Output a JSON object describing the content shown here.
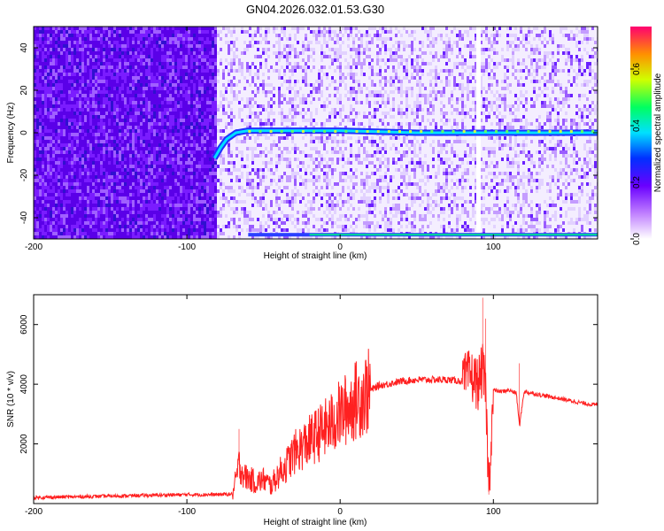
{
  "title": "GN04.2026.032.01.53.G30",
  "colors": {
    "snr_line": "#ff2020",
    "spectrum_low": "#ffffff",
    "spectrum_mid": "#6a00ff",
    "signal_track": "#00e0ff"
  },
  "chart_data": [
    {
      "type": "heatmap",
      "xlabel": "Height of straight line (km)",
      "ylabel": "Frequency (Hz)",
      "xlim": [
        -200,
        168
      ],
      "ylim": [
        -50,
        50
      ],
      "xticks": [
        -200,
        -100,
        0,
        100
      ],
      "yticks": [
        -40,
        -20,
        0,
        20,
        40
      ],
      "colorbar": {
        "label": "Normalized spectral amplitude",
        "range": [
          0.0,
          0.75
        ],
        "ticks": [
          "0.0",
          "0.2",
          "0.4",
          "0.6"
        ]
      },
      "signal_track": [
        {
          "x": -82,
          "y": -12
        },
        {
          "x": -78,
          "y": -7
        },
        {
          "x": -74,
          "y": -3
        },
        {
          "x": -68,
          "y": 0
        },
        {
          "x": -60,
          "y": 1
        },
        {
          "x": -40,
          "y": 1
        },
        {
          "x": 0,
          "y": 1
        },
        {
          "x": 50,
          "y": 0
        },
        {
          "x": 100,
          "y": 0
        },
        {
          "x": 168,
          "y": 0
        }
      ],
      "noise_boundary_x": -82,
      "data_gap_x": 90,
      "edge_band_y": -48
    },
    {
      "type": "line",
      "xlabel": "Height of straight line (km)",
      "ylabel": "SNR (10 * v/v)",
      "xlim": [
        -200,
        168
      ],
      "ylim": [
        0,
        7000
      ],
      "xticks": [
        -200,
        -100,
        0,
        100
      ],
      "yticks": [
        2000,
        4000,
        6000
      ],
      "series": [
        {
          "x": [
            -200,
            -150,
            -100,
            -80,
            -70,
            -66,
            -62,
            -58,
            -55,
            -50,
            -45,
            -40,
            -35,
            -30,
            -25,
            -20,
            -15,
            -10,
            -5,
            0,
            5,
            10,
            15,
            20,
            25,
            30,
            35,
            40,
            50,
            60,
            70,
            80,
            85,
            90,
            93,
            95,
            97,
            100,
            105,
            110,
            115,
            117,
            120,
            130,
            140,
            150,
            160,
            168
          ],
          "y": [
            200,
            250,
            300,
            300,
            320,
            1300,
            900,
            800,
            700,
            800,
            600,
            1000,
            1300,
            1700,
            1900,
            2100,
            2300,
            2500,
            2700,
            3000,
            3200,
            3450,
            3650,
            3800,
            3950,
            4000,
            4050,
            4100,
            4150,
            4150,
            4150,
            4100,
            4300,
            4000,
            4500,
            3700,
            500,
            3800,
            3750,
            3800,
            3700,
            2600,
            3750,
            3650,
            3550,
            3450,
            3350,
            3300
          ]
        }
      ]
    }
  ]
}
